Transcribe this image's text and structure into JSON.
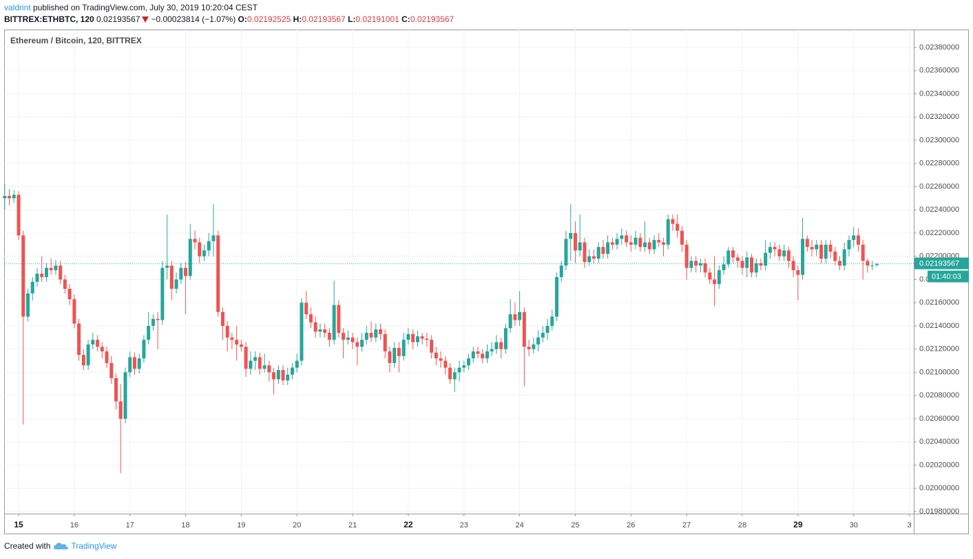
{
  "header": {
    "author": "valdrint",
    "text": "published on TradingView.com, July 30, 2019 10:20:04 CEST"
  },
  "symbol_bar": {
    "symbol": "BITTREX:ETHBTC, 120",
    "last": "0.02193567",
    "change": "−0.00023814 (−1.07%)",
    "open_label": "O:",
    "open": "0.02192525",
    "high_label": "H:",
    "high": "0.02193567",
    "low_label": "L:",
    "low": "0.02191001",
    "close_label": "C:",
    "close": "0.02193567"
  },
  "chart_data": {
    "type": "candlestick",
    "legend_title": "Ethereum / Bitcoin, 120, BITTREX",
    "x": [
      14.75,
      14.833,
      14.917,
      15,
      15.083,
      15.167,
      15.25,
      15.333,
      15.417,
      15.5,
      15.583,
      15.667,
      15.75,
      15.833,
      15.917,
      16,
      16.083,
      16.167,
      16.25,
      16.333,
      16.417,
      16.5,
      16.583,
      16.667,
      16.75,
      16.833,
      16.917,
      17,
      17.083,
      17.167,
      17.25,
      17.333,
      17.417,
      17.5,
      17.583,
      17.667,
      17.75,
      17.833,
      17.917,
      18,
      18.083,
      18.167,
      18.25,
      18.333,
      18.417,
      18.5,
      18.583,
      18.667,
      18.75,
      18.833,
      18.917,
      19,
      19.083,
      19.167,
      19.25,
      19.333,
      19.417,
      19.5,
      19.583,
      19.667,
      19.75,
      19.833,
      19.917,
      20,
      20.083,
      20.167,
      20.25,
      20.333,
      20.417,
      20.5,
      20.583,
      20.667,
      20.75,
      20.833,
      20.917,
      21,
      21.083,
      21.167,
      21.25,
      21.333,
      21.417,
      21.5,
      21.583,
      21.667,
      21.75,
      21.833,
      21.917,
      22,
      22.083,
      22.167,
      22.25,
      22.333,
      22.417,
      22.5,
      22.583,
      22.667,
      22.75,
      22.833,
      22.917,
      23,
      23.083,
      23.167,
      23.25,
      23.333,
      23.417,
      23.5,
      23.583,
      23.667,
      23.75,
      23.833,
      23.917,
      24,
      24.083,
      24.167,
      24.25,
      24.333,
      24.417,
      24.5,
      24.583,
      24.667,
      24.75,
      24.833,
      24.917,
      25,
      25.083,
      25.167,
      25.25,
      25.333,
      25.417,
      25.5,
      25.583,
      25.667,
      25.75,
      25.833,
      25.917,
      26,
      26.083,
      26.167,
      26.25,
      26.333,
      26.417,
      26.5,
      26.583,
      26.667,
      26.75,
      26.833,
      26.917,
      27,
      27.083,
      27.167,
      27.25,
      27.333,
      27.417,
      27.5,
      27.583,
      27.667,
      27.75,
      27.833,
      27.917,
      28,
      28.083,
      28.167,
      28.25,
      28.333,
      28.417,
      28.5,
      28.583,
      28.667,
      28.75,
      28.833,
      28.917,
      29,
      29.083,
      29.167,
      29.25,
      29.333,
      29.417,
      29.5,
      29.583,
      29.667,
      29.75,
      29.833,
      29.917,
      30,
      30.083,
      30.167,
      30.25,
      30.333,
      30.417
    ],
    "open": [
      0.0225,
      0.02252,
      0.0225,
      0.02253,
      0.02218,
      0.02148,
      0.02168,
      0.02178,
      0.02185,
      0.02182,
      0.0219,
      0.02188,
      0.02192,
      0.0218,
      0.02172,
      0.02163,
      0.02142,
      0.02115,
      0.02106,
      0.02124,
      0.02128,
      0.02122,
      0.02118,
      0.02108,
      0.02095,
      0.02075,
      0.0206,
      0.021,
      0.02113,
      0.02103,
      0.02112,
      0.02128,
      0.0214,
      0.02146,
      0.02145,
      0.0219,
      0.02192,
      0.02172,
      0.0218,
      0.0219,
      0.02183,
      0.02215,
      0.02212,
      0.022,
      0.02205,
      0.02213,
      0.02218,
      0.02152,
      0.0214,
      0.0213,
      0.02128,
      0.02124,
      0.02122,
      0.02103,
      0.0211,
      0.02113,
      0.02103,
      0.02106,
      0.021,
      0.02094,
      0.02102,
      0.02093,
      0.02098,
      0.02104,
      0.0211,
      0.0216,
      0.0215,
      0.02143,
      0.02135,
      0.02137,
      0.02134,
      0.02128,
      0.02158,
      0.02134,
      0.02128,
      0.0213,
      0.02126,
      0.02122,
      0.02128,
      0.02134,
      0.0213,
      0.02137,
      0.02133,
      0.02118,
      0.02108,
      0.02121,
      0.02114,
      0.02128,
      0.02133,
      0.02126,
      0.02131,
      0.02129,
      0.02128,
      0.02117,
      0.02112,
      0.0211,
      0.02104,
      0.02094,
      0.021,
      0.02104,
      0.02106,
      0.02112,
      0.02118,
      0.02116,
      0.02112,
      0.02118,
      0.0212,
      0.02126,
      0.0212,
      0.02138,
      0.0215,
      0.02145,
      0.02152,
      0.02122,
      0.0212,
      0.02124,
      0.0213,
      0.02134,
      0.0214,
      0.02148,
      0.02182,
      0.02192,
      0.02215,
      0.0222,
      0.02205,
      0.02212,
      0.02195,
      0.022,
      0.02198,
      0.02208,
      0.02202,
      0.02212,
      0.0221,
      0.02215,
      0.02218,
      0.02212,
      0.0221,
      0.02216,
      0.02208,
      0.02212,
      0.02206,
      0.02214,
      0.02212,
      0.0221,
      0.02232,
      0.02228,
      0.02222,
      0.0221,
      0.0219,
      0.02196,
      0.02192,
      0.02194,
      0.02186,
      0.0218,
      0.02176,
      0.02188,
      0.02193,
      0.02205,
      0.02199,
      0.02196,
      0.0219,
      0.02199,
      0.02186,
      0.02194,
      0.02192,
      0.02203,
      0.02208,
      0.02206,
      0.022,
      0.02205,
      0.02196,
      0.02188,
      0.02184,
      0.02215,
      0.02208,
      0.02206,
      0.0221,
      0.02198,
      0.0221,
      0.02204,
      0.02196,
      0.02192,
      0.02206,
      0.02214,
      0.02218,
      0.0221,
      0.02196,
      0.02192,
      0.02192525
    ],
    "high": [
      0.02262,
      0.02258,
      0.02257,
      0.02256,
      0.02222,
      0.02172,
      0.02182,
      0.0219,
      0.022,
      0.02194,
      0.02198,
      0.02197,
      0.02196,
      0.02184,
      0.02176,
      0.02167,
      0.02146,
      0.0212,
      0.02128,
      0.02134,
      0.02132,
      0.02126,
      0.02122,
      0.02114,
      0.02099,
      0.0209,
      0.02104,
      0.02118,
      0.02117,
      0.02116,
      0.02132,
      0.02152,
      0.0215,
      0.02152,
      0.02196,
      0.02236,
      0.02196,
      0.02186,
      0.02194,
      0.02195,
      0.02228,
      0.02222,
      0.02216,
      0.0221,
      0.0222,
      0.02245,
      0.02222,
      0.02156,
      0.02144,
      0.02134,
      0.0214,
      0.02128,
      0.02126,
      0.02118,
      0.02118,
      0.02117,
      0.02116,
      0.0211,
      0.02104,
      0.02106,
      0.02106,
      0.02104,
      0.02108,
      0.02116,
      0.02164,
      0.0217,
      0.02156,
      0.02148,
      0.02142,
      0.02142,
      0.02138,
      0.02179,
      0.02162,
      0.02138,
      0.02136,
      0.02134,
      0.0213,
      0.02134,
      0.0214,
      0.02144,
      0.02142,
      0.02142,
      0.02137,
      0.02122,
      0.02126,
      0.02126,
      0.02134,
      0.02138,
      0.02137,
      0.02136,
      0.02134,
      0.02134,
      0.02132,
      0.02122,
      0.02118,
      0.02114,
      0.02108,
      0.02104,
      0.0211,
      0.0211,
      0.02116,
      0.02122,
      0.02122,
      0.0212,
      0.02124,
      0.02126,
      0.02132,
      0.0213,
      0.02142,
      0.02163,
      0.0216,
      0.0217,
      0.02156,
      0.02128,
      0.0213,
      0.02136,
      0.0214,
      0.02146,
      0.02154,
      0.02186,
      0.02196,
      0.02222,
      0.02245,
      0.0223,
      0.02236,
      0.02216,
      0.02206,
      0.02206,
      0.02212,
      0.02214,
      0.02218,
      0.02216,
      0.0222,
      0.02224,
      0.02222,
      0.02218,
      0.02222,
      0.0222,
      0.0223,
      0.02216,
      0.02218,
      0.0222,
      0.02216,
      0.02236,
      0.02236,
      0.02236,
      0.02226,
      0.02214,
      0.022,
      0.022,
      0.02198,
      0.02198,
      0.0219,
      0.022,
      0.02192,
      0.022,
      0.02208,
      0.02208,
      0.02202,
      0.022,
      0.02204,
      0.02202,
      0.02198,
      0.02198,
      0.02214,
      0.02212,
      0.02212,
      0.0221,
      0.0221,
      0.02208,
      0.022,
      0.02192,
      0.02233,
      0.02218,
      0.02214,
      0.02214,
      0.02214,
      0.02214,
      0.02214,
      0.02208,
      0.022,
      0.02212,
      0.02218,
      0.02225,
      0.02224,
      0.02214,
      0.02198,
      0.02196,
      0.02193567
    ],
    "low": [
      0.0224,
      0.02244,
      0.02246,
      0.02214,
      0.02055,
      0.02144,
      0.02162,
      0.02174,
      0.02178,
      0.02178,
      0.02184,
      0.02184,
      0.02176,
      0.02168,
      0.02158,
      0.02138,
      0.0211,
      0.02102,
      0.02102,
      0.0212,
      0.02118,
      0.02112,
      0.02104,
      0.0209,
      0.02068,
      0.02013,
      0.02056,
      0.02096,
      0.02098,
      0.02099,
      0.02108,
      0.02124,
      0.02136,
      0.0212,
      0.02141,
      0.0218,
      0.02162,
      0.02168,
      0.02176,
      0.0215,
      0.0218,
      0.02206,
      0.02194,
      0.02196,
      0.022,
      0.022,
      0.02148,
      0.02128,
      0.02118,
      0.0212,
      0.0211,
      0.02118,
      0.02096,
      0.02098,
      0.02102,
      0.02098,
      0.021,
      0.02092,
      0.02081,
      0.0209,
      0.02089,
      0.02089,
      0.02094,
      0.021,
      0.02106,
      0.02146,
      0.02138,
      0.0213,
      0.0213,
      0.0213,
      0.02122,
      0.02124,
      0.0213,
      0.02112,
      0.02124,
      0.0212,
      0.02106,
      0.02118,
      0.02124,
      0.02126,
      0.02126,
      0.02128,
      0.02112,
      0.021,
      0.02104,
      0.021,
      0.0211,
      0.02124,
      0.0212,
      0.02122,
      0.02124,
      0.02122,
      0.02112,
      0.02106,
      0.02104,
      0.02098,
      0.0209,
      0.02083,
      0.02092,
      0.021,
      0.02102,
      0.02108,
      0.02112,
      0.02108,
      0.02108,
      0.02114,
      0.02116,
      0.02112,
      0.02116,
      0.02134,
      0.0214,
      0.0214,
      0.02088,
      0.02114,
      0.02116,
      0.02118,
      0.02126,
      0.02128,
      0.02136,
      0.02144,
      0.02178,
      0.02188,
      0.02196,
      0.02194,
      0.022,
      0.0219,
      0.02192,
      0.02194,
      0.02194,
      0.02198,
      0.02198,
      0.02206,
      0.02206,
      0.0221,
      0.02208,
      0.02204,
      0.02206,
      0.02204,
      0.02204,
      0.02202,
      0.02202,
      0.02208,
      0.022,
      0.02206,
      0.02222,
      0.02216,
      0.02204,
      0.0218,
      0.02186,
      0.02186,
      0.02186,
      0.02182,
      0.02176,
      0.02157,
      0.02172,
      0.02184,
      0.0219,
      0.02194,
      0.0219,
      0.02184,
      0.02182,
      0.02182,
      0.02182,
      0.02188,
      0.02188,
      0.02198,
      0.022,
      0.02196,
      0.02196,
      0.0219,
      0.02182,
      0.02162,
      0.0218,
      0.02204,
      0.022,
      0.022,
      0.02194,
      0.02194,
      0.02198,
      0.02192,
      0.02188,
      0.02188,
      0.022,
      0.02208,
      0.02204,
      0.0218,
      0.02186,
      0.02188,
      0.02191001
    ],
    "close": [
      0.02252,
      0.0225,
      0.02253,
      0.02218,
      0.02148,
      0.02168,
      0.02178,
      0.02185,
      0.02182,
      0.0219,
      0.02188,
      0.02192,
      0.0218,
      0.02172,
      0.02163,
      0.02142,
      0.02115,
      0.02106,
      0.02124,
      0.02128,
      0.02122,
      0.02118,
      0.02108,
      0.02095,
      0.02075,
      0.0206,
      0.021,
      0.02113,
      0.02103,
      0.02112,
      0.02128,
      0.0214,
      0.02146,
      0.02145,
      0.0219,
      0.02192,
      0.02172,
      0.0218,
      0.0219,
      0.02183,
      0.02215,
      0.02212,
      0.022,
      0.02205,
      0.02213,
      0.02218,
      0.02152,
      0.0214,
      0.0213,
      0.02128,
      0.02124,
      0.02122,
      0.02103,
      0.0211,
      0.02113,
      0.02103,
      0.02106,
      0.021,
      0.02094,
      0.02102,
      0.02093,
      0.02098,
      0.02104,
      0.0211,
      0.0216,
      0.0215,
      0.02143,
      0.02135,
      0.02137,
      0.02134,
      0.02128,
      0.02158,
      0.02134,
      0.02128,
      0.0213,
      0.02126,
      0.02122,
      0.02128,
      0.02134,
      0.0213,
      0.02137,
      0.02133,
      0.02118,
      0.02108,
      0.02121,
      0.02114,
      0.02128,
      0.02133,
      0.02126,
      0.02131,
      0.02129,
      0.02128,
      0.02117,
      0.02112,
      0.0211,
      0.02104,
      0.02094,
      0.021,
      0.02104,
      0.02106,
      0.02112,
      0.02118,
      0.02116,
      0.02112,
      0.02118,
      0.0212,
      0.02126,
      0.0212,
      0.02138,
      0.0215,
      0.02145,
      0.02152,
      0.02122,
      0.0212,
      0.02124,
      0.0213,
      0.02134,
      0.0214,
      0.02148,
      0.02182,
      0.02192,
      0.02215,
      0.0222,
      0.02205,
      0.02212,
      0.02195,
      0.022,
      0.02198,
      0.02208,
      0.02202,
      0.02212,
      0.0221,
      0.02215,
      0.02218,
      0.02212,
      0.0221,
      0.02216,
      0.02208,
      0.02212,
      0.02206,
      0.02214,
      0.02212,
      0.0221,
      0.02232,
      0.02228,
      0.02222,
      0.0221,
      0.0219,
      0.02196,
      0.02192,
      0.02194,
      0.02186,
      0.0218,
      0.02176,
      0.02188,
      0.02193,
      0.02205,
      0.02199,
      0.02196,
      0.0219,
      0.02199,
      0.02186,
      0.02194,
      0.02192,
      0.02203,
      0.02208,
      0.02206,
      0.022,
      0.02205,
      0.02196,
      0.02188,
      0.02184,
      0.02215,
      0.02208,
      0.02206,
      0.0221,
      0.02198,
      0.0221,
      0.02204,
      0.02196,
      0.02192,
      0.02206,
      0.02214,
      0.02218,
      0.0221,
      0.02196,
      0.02192,
      0.02192,
      0.02193567
    ],
    "up_color": "#26a69a",
    "down_color": "#ef5350",
    "xlim": [
      14.74,
      31.08
    ],
    "xticks": [
      15,
      16,
      17,
      18,
      19,
      20,
      21,
      22,
      23,
      24,
      25,
      26,
      27,
      28,
      29,
      30,
      {
        "value": 31,
        "label": "3"
      }
    ],
    "ylim": [
      0.019782,
      0.023954
    ],
    "yticks": [
      {
        "value": 0.0198,
        "label": "0.01980000"
      },
      {
        "value": 0.02,
        "label": "0.02000000"
      },
      {
        "value": 0.0202,
        "label": "0.02020000"
      },
      {
        "value": 0.0204,
        "label": "0.02040000"
      },
      {
        "value": 0.0206,
        "label": "0.02060000"
      },
      {
        "value": 0.0208,
        "label": "0.02080000"
      },
      {
        "value": 0.021,
        "label": "0.02100000"
      },
      {
        "value": 0.0212,
        "label": "0.02120000"
      },
      {
        "value": 0.0214,
        "label": "0.02140000"
      },
      {
        "value": 0.0216,
        "label": "0.02160000"
      },
      {
        "value": 0.0218,
        "label": "0.02180000"
      },
      {
        "value": 0.022,
        "label": "0.02200000"
      },
      {
        "value": 0.0222,
        "label": "0.02220000"
      },
      {
        "value": 0.0224,
        "label": "0.02240000"
      },
      {
        "value": 0.0226,
        "label": "0.02260000"
      },
      {
        "value": 0.0228,
        "label": "0.02280000"
      },
      {
        "value": 0.023,
        "label": "0.02300000"
      },
      {
        "value": 0.0232,
        "label": "0.02320000"
      },
      {
        "value": 0.0234,
        "label": "0.02340000"
      },
      {
        "value": 0.0236,
        "label": "0.02360000"
      },
      {
        "value": 0.0238,
        "label": "0.02380000"
      }
    ],
    "grid": true,
    "last_price": 0.02193567,
    "countdown": "01:40:03"
  },
  "footer": {
    "prefix": "Created with",
    "brand": "TradingView"
  }
}
